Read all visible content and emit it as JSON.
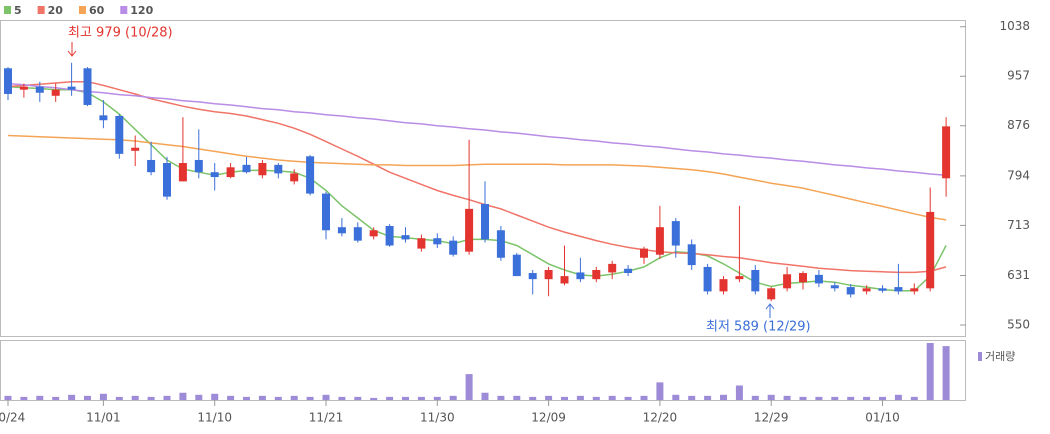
{
  "chart_data": {
    "type": "candlestick",
    "categories": [
      "10/24",
      null,
      null,
      null,
      null,
      null,
      "11/01",
      null,
      null,
      null,
      null,
      null,
      null,
      "11/10",
      null,
      null,
      null,
      null,
      null,
      null,
      "11/21",
      null,
      null,
      null,
      null,
      null,
      null,
      "11/30",
      null,
      null,
      null,
      null,
      null,
      null,
      "12/09",
      null,
      null,
      null,
      null,
      null,
      null,
      "12/20",
      null,
      null,
      null,
      null,
      null,
      null,
      "12/29",
      null,
      null,
      null,
      null,
      null,
      null,
      "01/10",
      null,
      null,
      null,
      null
    ],
    "open": [
      970,
      935,
      940,
      925,
      940,
      970,
      893,
      892,
      835,
      820,
      815,
      785,
      820,
      800,
      792,
      812,
      795,
      812,
      785,
      826,
      765,
      710,
      710,
      695,
      712,
      697,
      675,
      692,
      688,
      670,
      748,
      705,
      665,
      635,
      625,
      618,
      636,
      625,
      636,
      642,
      660,
      665,
      720,
      682,
      645,
      605,
      625,
      640,
      592,
      610,
      620,
      632,
      615,
      612,
      605,
      610,
      612,
      605,
      610,
      790
    ],
    "high": [
      972,
      945,
      948,
      945,
      979,
      972,
      918,
      895,
      860,
      850,
      825,
      890,
      870,
      815,
      815,
      825,
      820,
      815,
      805,
      828,
      768,
      725,
      718,
      710,
      715,
      710,
      698,
      700,
      695,
      853,
      785,
      712,
      668,
      640,
      645,
      680,
      660,
      645,
      655,
      648,
      678,
      745,
      725,
      690,
      650,
      630,
      745,
      648,
      612,
      645,
      638,
      640,
      620,
      617,
      615,
      615,
      650,
      618,
      775,
      890
    ],
    "low": [
      918,
      922,
      915,
      915,
      925,
      908,
      872,
      822,
      810,
      795,
      755,
      785,
      790,
      770,
      790,
      798,
      790,
      790,
      780,
      762,
      690,
      695,
      685,
      690,
      678,
      685,
      670,
      676,
      662,
      665,
      685,
      655,
      630,
      600,
      597,
      615,
      620,
      620,
      625,
      630,
      650,
      658,
      660,
      640,
      600,
      600,
      620,
      600,
      589,
      605,
      608,
      612,
      605,
      595,
      600,
      603,
      600,
      600,
      605,
      760
    ],
    "close": [
      928,
      940,
      930,
      935,
      935,
      910,
      885,
      830,
      840,
      800,
      760,
      815,
      800,
      792,
      808,
      800,
      815,
      798,
      798,
      765,
      705,
      700,
      688,
      705,
      680,
      690,
      692,
      682,
      665,
      740,
      690,
      660,
      630,
      625,
      640,
      630,
      625,
      640,
      650,
      635,
      675,
      710,
      680,
      648,
      605,
      625,
      630,
      605,
      610,
      633,
      635,
      618,
      610,
      600,
      610,
      606,
      605,
      610,
      735,
      875
    ],
    "up_color": "#e3342f",
    "down_color": "#3b6fd9",
    "ma": [
      {
        "name": "5",
        "color": "#7cc46a",
        "values": [
          940,
          938,
          937,
          935,
          935,
          930,
          915,
          895,
          870,
          845,
          820,
          805,
          800,
          795,
          800,
          803,
          803,
          802,
          800,
          790,
          770,
          745,
          725,
          705,
          695,
          693,
          690,
          688,
          683,
          690,
          690,
          688,
          680,
          665,
          650,
          640,
          632,
          630,
          633,
          638,
          645,
          660,
          670,
          668,
          663,
          650,
          635,
          620,
          613,
          618,
          620,
          622,
          620,
          615,
          612,
          608,
          606,
          606,
          630,
          680
        ]
      },
      {
        "name": "20",
        "color": "#f07468",
        "values": [
          940,
          942,
          944,
          946,
          948,
          948,
          942,
          935,
          928,
          920,
          914,
          908,
          903,
          899,
          896,
          892,
          886,
          880,
          872,
          862,
          850,
          838,
          826,
          813,
          800,
          790,
          780,
          770,
          762,
          755,
          747,
          740,
          730,
          720,
          710,
          702,
          695,
          688,
          682,
          677,
          673,
          670,
          668,
          667,
          665,
          662,
          660,
          656,
          652,
          649,
          646,
          643,
          641,
          639,
          638,
          637,
          636,
          636,
          638,
          645
        ]
      },
      {
        "name": "60",
        "color": "#f5a456",
        "values": [
          860,
          859,
          858,
          857,
          856,
          855,
          854,
          853,
          851,
          848,
          845,
          842,
          838,
          834,
          830,
          826,
          823,
          820,
          818,
          816,
          815,
          814,
          813,
          812,
          812,
          811,
          811,
          811,
          811,
          812,
          813,
          813,
          813,
          813,
          813,
          812,
          812,
          812,
          812,
          811,
          810,
          808,
          806,
          804,
          801,
          797,
          792,
          787,
          782,
          778,
          774,
          768,
          762,
          756,
          750,
          744,
          738,
          732,
          726,
          722
        ]
      },
      {
        "name": "120",
        "color": "#b98ce6",
        "values": [
          945,
          943,
          940,
          938,
          935,
          932,
          930,
          927,
          925,
          922,
          920,
          917,
          915,
          912,
          910,
          907,
          904,
          902,
          899,
          897,
          894,
          892,
          889,
          887,
          884,
          881,
          879,
          876,
          874,
          871,
          869,
          866,
          864,
          861,
          858,
          856,
          853,
          851,
          848,
          846,
          843,
          841,
          838,
          835,
          833,
          830,
          828,
          825,
          823,
          820,
          818,
          815,
          812,
          810,
          807,
          805,
          802,
          800,
          797,
          795
        ]
      }
    ],
    "volume": {
      "name": "거래량",
      "color": "#9d8bd8",
      "values": [
        4,
        3,
        4,
        3,
        5,
        4,
        6,
        3,
        4,
        3,
        4,
        7,
        5,
        6,
        4,
        3,
        4,
        3,
        4,
        3,
        5,
        3,
        3,
        2,
        3,
        3,
        3,
        3,
        4,
        25,
        7,
        4,
        4,
        3,
        4,
        3,
        4,
        3,
        4,
        3,
        4,
        17,
        5,
        4,
        4,
        5,
        14,
        4,
        5,
        4,
        3,
        3,
        3,
        3,
        3,
        3,
        5,
        3,
        55,
        52
      ]
    },
    "ylim": [
      532,
      1049
    ],
    "yticks": [
      1038,
      957,
      876,
      794,
      713,
      631,
      550
    ],
    "annotations": [
      "최고 979 (10/28)",
      "최저 589 (12/29)"
    ]
  }
}
